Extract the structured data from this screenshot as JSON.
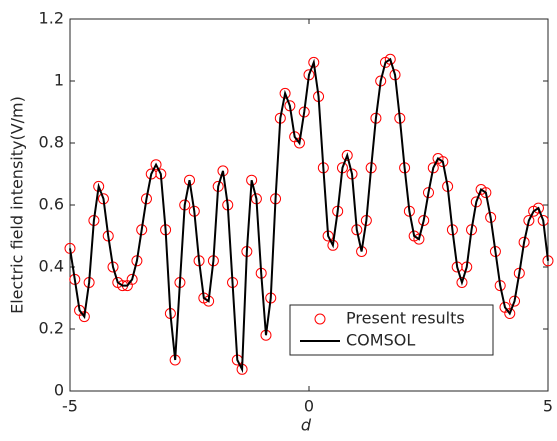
{
  "chart_data": {
    "type": "line",
    "xlabel": "d",
    "ylabel": "Electric field intensity(V/m)",
    "x": [
      -5.0,
      -4.9,
      -4.8,
      -4.7,
      -4.6,
      -4.5,
      -4.4,
      -4.3,
      -4.2,
      -4.1,
      -4.0,
      -3.9,
      -3.8,
      -3.7,
      -3.6,
      -3.5,
      -3.4,
      -3.3,
      -3.2,
      -3.1,
      -3.0,
      -2.9,
      -2.8,
      -2.7,
      -2.6,
      -2.5,
      -2.4,
      -2.3,
      -2.2,
      -2.1,
      -2.0,
      -1.9,
      -1.8,
      -1.7,
      -1.6,
      -1.5,
      -1.4,
      -1.3,
      -1.2,
      -1.1,
      -1.0,
      -0.9,
      -0.8,
      -0.7,
      -0.6,
      -0.5,
      -0.4,
      -0.3,
      -0.2,
      -0.1,
      0.0,
      0.1,
      0.2,
      0.3,
      0.4,
      0.5,
      0.6,
      0.7,
      0.8,
      0.9,
      1.0,
      1.1,
      1.2,
      1.3,
      1.4,
      1.5,
      1.6,
      1.7,
      1.8,
      1.9,
      2.0,
      2.1,
      2.2,
      2.3,
      2.4,
      2.5,
      2.6,
      2.7,
      2.8,
      2.9,
      3.0,
      3.1,
      3.2,
      3.3,
      3.4,
      3.5,
      3.6,
      3.7,
      3.8,
      3.9,
      4.0,
      4.1,
      4.2,
      4.3,
      4.4,
      4.5,
      4.6,
      4.7,
      4.8,
      4.9,
      5.0
    ],
    "series": [
      {
        "name": "Present results",
        "color": "#ff0000",
        "marker": "circle",
        "values": [
          0.46,
          0.36,
          0.26,
          0.24,
          0.35,
          0.55,
          0.66,
          0.62,
          0.5,
          0.4,
          0.35,
          0.34,
          0.34,
          0.36,
          0.42,
          0.52,
          0.62,
          0.7,
          0.73,
          0.7,
          0.52,
          0.25,
          0.1,
          0.35,
          0.6,
          0.68,
          0.58,
          0.42,
          0.3,
          0.29,
          0.42,
          0.66,
          0.71,
          0.6,
          0.35,
          0.1,
          0.07,
          0.45,
          0.68,
          0.62,
          0.38,
          0.18,
          0.3,
          0.62,
          0.88,
          0.96,
          0.92,
          0.82,
          0.8,
          0.9,
          1.02,
          1.06,
          0.95,
          0.72,
          0.5,
          0.47,
          0.58,
          0.72,
          0.76,
          0.7,
          0.52,
          0.45,
          0.55,
          0.72,
          0.88,
          1.0,
          1.06,
          1.07,
          1.02,
          0.88,
          0.72,
          0.58,
          0.5,
          0.49,
          0.55,
          0.64,
          0.72,
          0.75,
          0.74,
          0.66,
          0.52,
          0.4,
          0.35,
          0.4,
          0.52,
          0.61,
          0.65,
          0.64,
          0.56,
          0.45,
          0.34,
          0.27,
          0.25,
          0.29,
          0.38,
          0.48,
          0.55,
          0.58,
          0.59,
          0.55,
          0.42
        ]
      },
      {
        "name": "COMSOL",
        "color": "#000000",
        "marker": "line",
        "values": [
          0.46,
          0.36,
          0.26,
          0.24,
          0.35,
          0.55,
          0.66,
          0.62,
          0.5,
          0.4,
          0.35,
          0.34,
          0.34,
          0.36,
          0.42,
          0.52,
          0.62,
          0.7,
          0.73,
          0.7,
          0.52,
          0.25,
          0.1,
          0.35,
          0.6,
          0.68,
          0.58,
          0.42,
          0.3,
          0.29,
          0.42,
          0.66,
          0.71,
          0.6,
          0.35,
          0.1,
          0.07,
          0.45,
          0.68,
          0.62,
          0.38,
          0.18,
          0.3,
          0.62,
          0.88,
          0.96,
          0.92,
          0.82,
          0.8,
          0.9,
          1.02,
          1.06,
          0.95,
          0.72,
          0.5,
          0.47,
          0.58,
          0.72,
          0.76,
          0.7,
          0.52,
          0.45,
          0.55,
          0.72,
          0.88,
          1.0,
          1.06,
          1.07,
          1.02,
          0.88,
          0.72,
          0.58,
          0.5,
          0.49,
          0.55,
          0.64,
          0.72,
          0.75,
          0.74,
          0.66,
          0.52,
          0.4,
          0.35,
          0.4,
          0.52,
          0.61,
          0.65,
          0.64,
          0.56,
          0.45,
          0.34,
          0.27,
          0.25,
          0.29,
          0.38,
          0.48,
          0.55,
          0.58,
          0.59,
          0.55,
          0.42
        ]
      }
    ],
    "xlim": [
      -5,
      5
    ],
    "xticks": [
      -5,
      0,
      5
    ],
    "ylim": [
      0,
      1.2
    ],
    "yticks": [
      0,
      0.2,
      0.4,
      0.6,
      0.8,
      1,
      1.2
    ],
    "grid": false,
    "legend": "lower right"
  }
}
